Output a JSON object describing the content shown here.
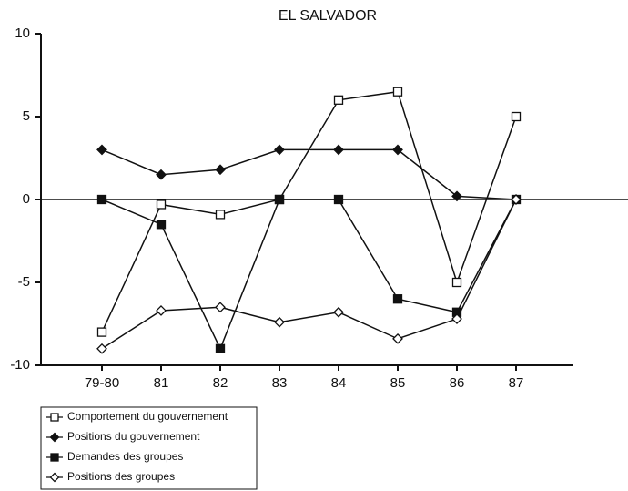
{
  "chart_data": {
    "type": "line",
    "title": "EL SALVADOR",
    "categories": [
      "79-80",
      "81",
      "82",
      "83",
      "84",
      "85",
      "86",
      "87"
    ],
    "series": [
      {
        "name": "Comportement du gouvernement",
        "color": "#111111",
        "marker": "square-open",
        "values": [
          -8,
          -0.3,
          -0.9,
          0,
          6,
          6.5,
          -5,
          5
        ]
      },
      {
        "name": "Positions du gouvernement",
        "color": "#111111",
        "marker": "diamond-filled",
        "values": [
          3,
          1.5,
          1.8,
          3,
          3,
          3,
          0.2,
          0
        ]
      },
      {
        "name": "Demandes des groupes",
        "color": "#111111",
        "marker": "square-filled",
        "values": [
          0,
          -1.5,
          -9,
          0,
          0,
          -6,
          -6.8,
          0
        ]
      },
      {
        "name": "Positions des groupes",
        "color": "#111111",
        "marker": "diamond-open",
        "values": [
          -9,
          -6.7,
          -6.5,
          -7.4,
          -6.8,
          -8.4,
          -7.2,
          0
        ]
      }
    ],
    "ylim": [
      -10,
      10
    ],
    "yticks": [
      10,
      5,
      0,
      -5,
      -10
    ],
    "legend": "bottom-left"
  }
}
